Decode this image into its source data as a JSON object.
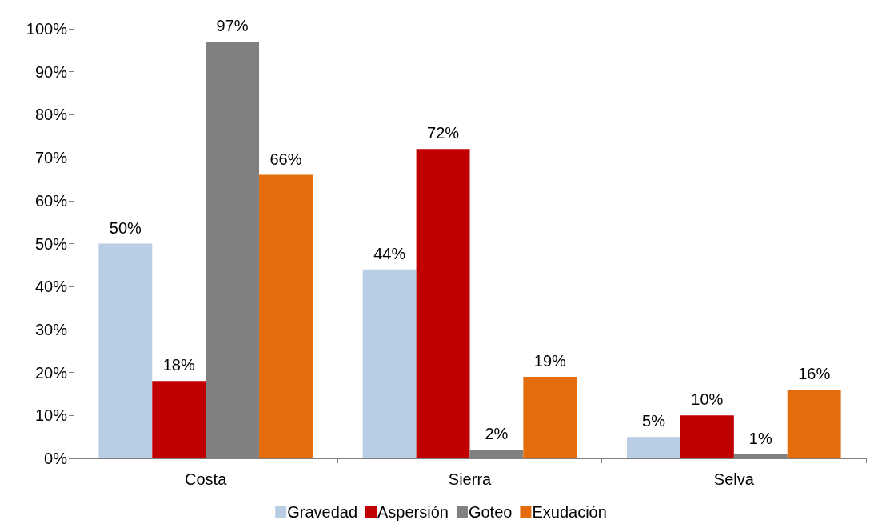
{
  "chart_data": {
    "type": "bar",
    "categories": [
      "Costa",
      "Sierra",
      "Selva"
    ],
    "series": [
      {
        "name": "Gravedad",
        "color": "#b9cde5",
        "values": [
          50,
          44,
          5
        ],
        "value_labels": [
          "50%",
          "44%",
          "5%"
        ]
      },
      {
        "name": "Aspersión",
        "color": "#c00000",
        "values": [
          18,
          72,
          10
        ],
        "value_labels": [
          "18%",
          "72%",
          "10%"
        ]
      },
      {
        "name": "Goteo",
        "color": "#808080",
        "values": [
          97,
          2,
          1
        ],
        "value_labels": [
          "97%",
          "2%",
          "1%"
        ]
      },
      {
        "name": "Exudación",
        "color": "#e46c0a",
        "values": [
          66,
          19,
          16
        ],
        "value_labels": [
          "66%",
          "19%",
          "16%"
        ]
      }
    ],
    "ylim": [
      0,
      100
    ],
    "yticks": [
      {
        "value": 0,
        "label": "0%"
      },
      {
        "value": 10,
        "label": "10%"
      },
      {
        "value": 20,
        "label": "20%"
      },
      {
        "value": 30,
        "label": "30%"
      },
      {
        "value": 40,
        "label": "40%"
      },
      {
        "value": 50,
        "label": "50%"
      },
      {
        "value": 60,
        "label": "60%"
      },
      {
        "value": 70,
        "label": "70%"
      },
      {
        "value": 80,
        "label": "80%"
      },
      {
        "value": 90,
        "label": "90%"
      },
      {
        "value": 100,
        "label": "100%"
      }
    ],
    "grid": false,
    "legend": "bottom"
  }
}
